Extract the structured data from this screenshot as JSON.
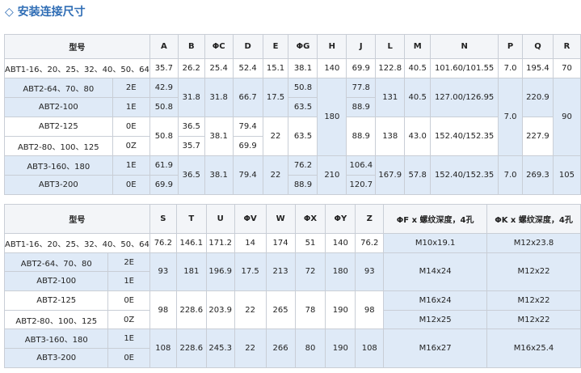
{
  "header": {
    "title": "◇ 安装连接尺寸"
  },
  "table1": {
    "header": [
      "型号",
      "A",
      "B",
      "ΦC",
      "D",
      "E",
      "ΦG",
      "H",
      "J",
      "L",
      "M",
      "N",
      "P",
      "Q",
      "R"
    ],
    "rows": [
      [
        "ABT1-16、20、25、32、40、50、64",
        "35.7",
        "26.2",
        "25.4",
        "52.4",
        "15.1",
        "38.1",
        "140",
        "69.9",
        "122.8",
        "40.5",
        "101.60/101.55",
        "7.0",
        "195.4",
        "70"
      ],
      [
        "ABT2-64、70、80",
        "2E",
        "42.9",
        "31.8",
        "31.8",
        "66.7",
        "17.5",
        "50.8",
        "180",
        "77.8",
        "131",
        "40.5",
        "127.00/126.95",
        "7.0",
        "220.9",
        "90"
      ],
      [
        "ABT2-100",
        "1E",
        "50.8",
        "63.5",
        "88.9"
      ],
      [
        "ABT2-125",
        "0E",
        "50.8",
        "36.5",
        "38.1",
        "79.4",
        "22",
        "63.5",
        "88.9",
        "138",
        "43.0",
        "152.40/152.35",
        "227.9"
      ],
      [
        "ABT2-80、100、125",
        "0Z",
        "35.7",
        "69.9"
      ],
      [
        "ABT3-160、180",
        "1E",
        "61.9",
        "36.5",
        "38.1",
        "79.4",
        "22",
        "76.2",
        "210",
        "106.4",
        "167.9",
        "57.8",
        "152.40/152.35",
        "7.0",
        "269.3",
        "105"
      ],
      [
        "ABT3-200",
        "0E",
        "69.9",
        "88.9",
        "120.7"
      ]
    ]
  },
  "table2": {
    "header": [
      "型号",
      "S",
      "T",
      "U",
      "ΦV",
      "W",
      "ΦX",
      "ΦY",
      "Z",
      "ΦF x 螺纹深度，4孔",
      "ΦK x 螺纹深度，4孔"
    ],
    "rows": [
      [
        "ABT1-16、20、25、32、40、50、64",
        "76.2",
        "146.1",
        "171.2",
        "14",
        "174",
        "51",
        "140",
        "76.2",
        "M10x19.1",
        "M12x23.8"
      ],
      [
        "ABT2-64、70、80",
        "2E",
        "93",
        "181",
        "196.9",
        "17.5",
        "213",
        "72",
        "180",
        "93",
        "M14x24",
        "M12x22"
      ],
      [
        "ABT2-100",
        "1E"
      ],
      [
        "ABT2-125",
        "0E",
        "98",
        "228.6",
        "203.9",
        "22",
        "265",
        "78",
        "190",
        "98",
        "M16x24",
        "M12x22"
      ],
      [
        "ABT2-80、100、125",
        "0Z",
        "M12x25",
        "M12x22"
      ],
      [
        "ABT3-160、180",
        "1E",
        "108",
        "228.6",
        "245.3",
        "22",
        "266",
        "80",
        "190",
        "108",
        "M16x27",
        "M16x25.4"
      ],
      [
        "ABT3-200",
        "0E"
      ]
    ]
  }
}
